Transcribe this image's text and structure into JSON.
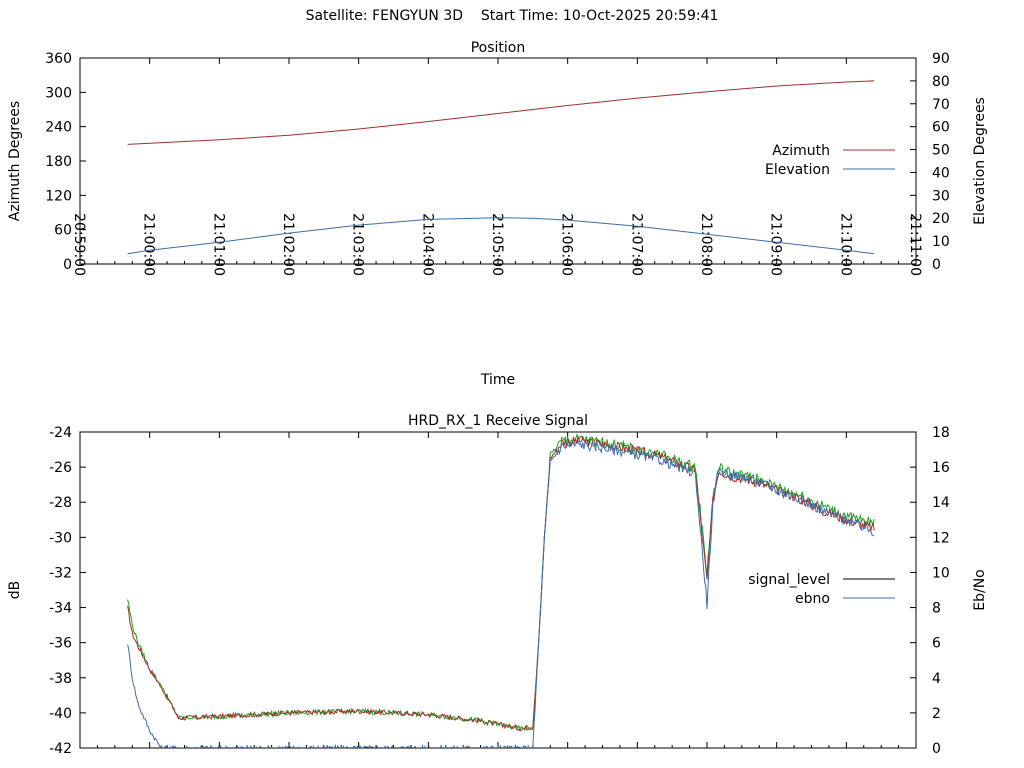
{
  "header": {
    "satellite_label": "Satellite: FENGYUN 3D",
    "start_time_label": "Start Time: 10-Oct-2025 20:59:41"
  },
  "chart_data": [
    {
      "type": "line",
      "title": "Position",
      "xlabel": "Time",
      "ylabel": "Azimuth Degrees",
      "y2label": "Elevation Degrees",
      "ylim": [
        0,
        360
      ],
      "y2lim": [
        0,
        90
      ],
      "yticks": [
        "0",
        "60",
        "120",
        "180",
        "240",
        "300",
        "360"
      ],
      "y2ticks": [
        "0",
        "10",
        "20",
        "30",
        "40",
        "50",
        "60",
        "70",
        "80",
        "90"
      ],
      "xlim": [
        "20:59:00",
        "21:11:00"
      ],
      "xticks": [
        "20:59:00",
        "21:00:00",
        "21:01:00",
        "21:02:00",
        "21:03:00",
        "21:04:00",
        "21:05:00",
        "21:06:00",
        "21:07:00",
        "21:08:00",
        "21:09:00",
        "21:10:00",
        "21:11:00"
      ],
      "legend_position": "right",
      "x": [
        "20:59:41",
        "21:00:00",
        "21:01:00",
        "21:02:00",
        "21:03:00",
        "21:04:00",
        "21:05:00",
        "21:05:30",
        "21:06:00",
        "21:07:00",
        "21:08:00",
        "21:09:00",
        "21:10:00",
        "21:10:24"
      ],
      "series": [
        {
          "name": "Azimuth",
          "axis": "y1",
          "color": "#a0302f",
          "values": [
            209,
            211,
            217,
            225,
            236,
            249,
            263,
            270,
            277,
            290,
            301,
            311,
            318,
            320
          ]
        },
        {
          "name": "Elevation",
          "axis": "y2",
          "color": "#3c6fa8",
          "values": [
            4.5,
            6,
            9.5,
            13.5,
            17,
            19.5,
            20.2,
            20.0,
            19.2,
            16.5,
            13,
            9.5,
            6,
            4.5
          ]
        }
      ]
    },
    {
      "type": "line",
      "title": "HRD_RX_1 Receive Signal",
      "xlabel": "",
      "ylabel": "dB",
      "y2label": "Eb/No",
      "ylim": [
        -42,
        -24
      ],
      "y2lim": [
        0,
        18
      ],
      "yticks": [
        "-42",
        "-40",
        "-38",
        "-36",
        "-34",
        "-32",
        "-30",
        "-28",
        "-26",
        "-24"
      ],
      "y2ticks": [
        "0",
        "2",
        "4",
        "6",
        "8",
        "10",
        "12",
        "14",
        "16",
        "18"
      ],
      "xlim": [
        "20:59:00",
        "21:11:00"
      ],
      "legend_position": "right",
      "signal_x": [
        "20:59:41",
        "20:59:45",
        "20:59:50",
        "21:00:00",
        "21:00:10",
        "21:00:25",
        "21:01:00",
        "21:02:00",
        "21:03:00",
        "21:04:00",
        "21:04:40",
        "21:05:20",
        "21:05:30",
        "21:05:35",
        "21:05:40",
        "21:05:45",
        "21:05:55",
        "21:06:10",
        "21:06:40",
        "21:07:20",
        "21:07:50",
        "21:08:00",
        "21:08:05",
        "21:08:10",
        "21:08:20",
        "21:08:40",
        "21:09:00",
        "21:09:20",
        "21:09:40",
        "21:10:00",
        "21:10:24"
      ],
      "series": [
        {
          "name": "signal_level",
          "axis": "y1",
          "color": "#000000",
          "values": [
            -34,
            -35.5,
            -36.2,
            -37.5,
            -38.5,
            -40.3,
            -40.2,
            -40,
            -39.9,
            -40.1,
            -40.4,
            -40.9,
            -40.8,
            -36,
            -30,
            -25.5,
            -24.6,
            -24.5,
            -24.8,
            -25.4,
            -26.2,
            -32.5,
            -28,
            -26.2,
            -26.5,
            -26.8,
            -27.3,
            -27.8,
            -28.5,
            -29,
            -29.5
          ]
        },
        {
          "name": "ebno",
          "axis": "y2",
          "color": "#3c6fa8",
          "values": [
            6,
            4,
            2.5,
            1,
            0,
            0,
            0,
            0,
            0,
            0,
            0,
            0,
            0,
            6,
            12,
            16.3,
            17.2,
            17.3,
            17,
            16.4,
            15.6,
            8.2,
            13.8,
            15.8,
            15.6,
            15.3,
            14.7,
            14.2,
            13.5,
            13,
            12.3
          ]
        },
        {
          "name": "",
          "axis": "y1",
          "color": "#1aa31a",
          "legend": false,
          "values": [
            -33.5,
            -35,
            -36,
            -37.5,
            -38.5,
            -40.3,
            -40.2,
            -40,
            -39.9,
            -40.1,
            -40.4,
            -40.9,
            -40.8,
            -36,
            -30,
            -25.3,
            -24.5,
            -24.4,
            -24.7,
            -25.3,
            -26,
            -32,
            -27.8,
            -26,
            -26.3,
            -26.6,
            -27.1,
            -27.6,
            -28.2,
            -28.8,
            -29.2
          ]
        }
      ]
    }
  ]
}
